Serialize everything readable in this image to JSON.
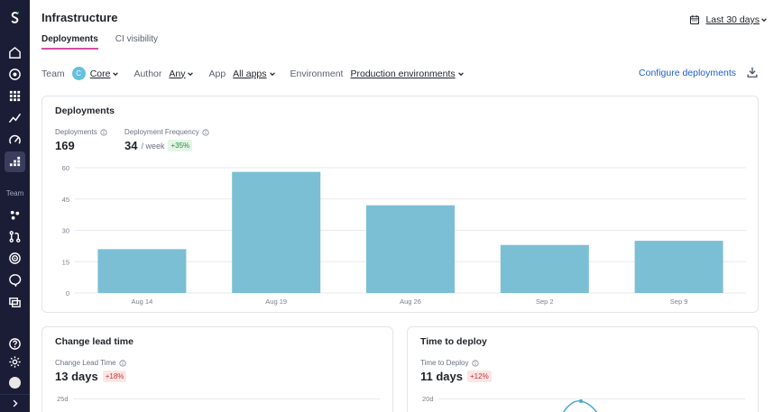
{
  "sidebar": {
    "section_label": "Team"
  },
  "header": {
    "title": "Infrastructure",
    "tabs": [
      {
        "label": "Deployments",
        "active": true
      },
      {
        "label": "CI visibility",
        "active": false
      }
    ],
    "date_range": "Last 30 days"
  },
  "filters": {
    "team_label": "Team",
    "team_badge": "C",
    "team_value": "Core",
    "author_label": "Author",
    "author_value": "Any",
    "app_label": "App",
    "app_value": "All apps",
    "env_label": "Environment",
    "env_value": "Production environments",
    "configure_label": "Configure deployments"
  },
  "deployments_card": {
    "title": "Deployments",
    "metric1_label": "Deployments",
    "metric1_value": "169",
    "metric2_label": "Deployment Frequency",
    "metric2_value": "34",
    "metric2_unit": "/ week",
    "metric2_change": "+35%"
  },
  "lead_time_card": {
    "title": "Change lead time",
    "metric_label": "Change Lead Time",
    "metric_value": "13 days",
    "metric_change": "+18%",
    "first_tick": "25d"
  },
  "deploy_time_card": {
    "title": "Time to deploy",
    "metric_label": "Time to Deploy",
    "metric_value": "11 days",
    "metric_change": "+12%",
    "first_tick": "20d"
  },
  "chart_data": {
    "type": "bar",
    "categories": [
      "Aug 14",
      "Aug 19",
      "Aug 26",
      "Sep 2",
      "Sep 9"
    ],
    "values": [
      21,
      58,
      42,
      23,
      25
    ],
    "ylim": [
      0,
      60
    ],
    "yticks": [
      0,
      15,
      30,
      45,
      60
    ],
    "bar_color": "#7bbfd4",
    "grid": true
  },
  "colors": {
    "sidebar_bg": "#1b1d36",
    "accent_tab": "#d34fa6",
    "link": "#1f5fcc",
    "bar": "#7bbfd4"
  }
}
